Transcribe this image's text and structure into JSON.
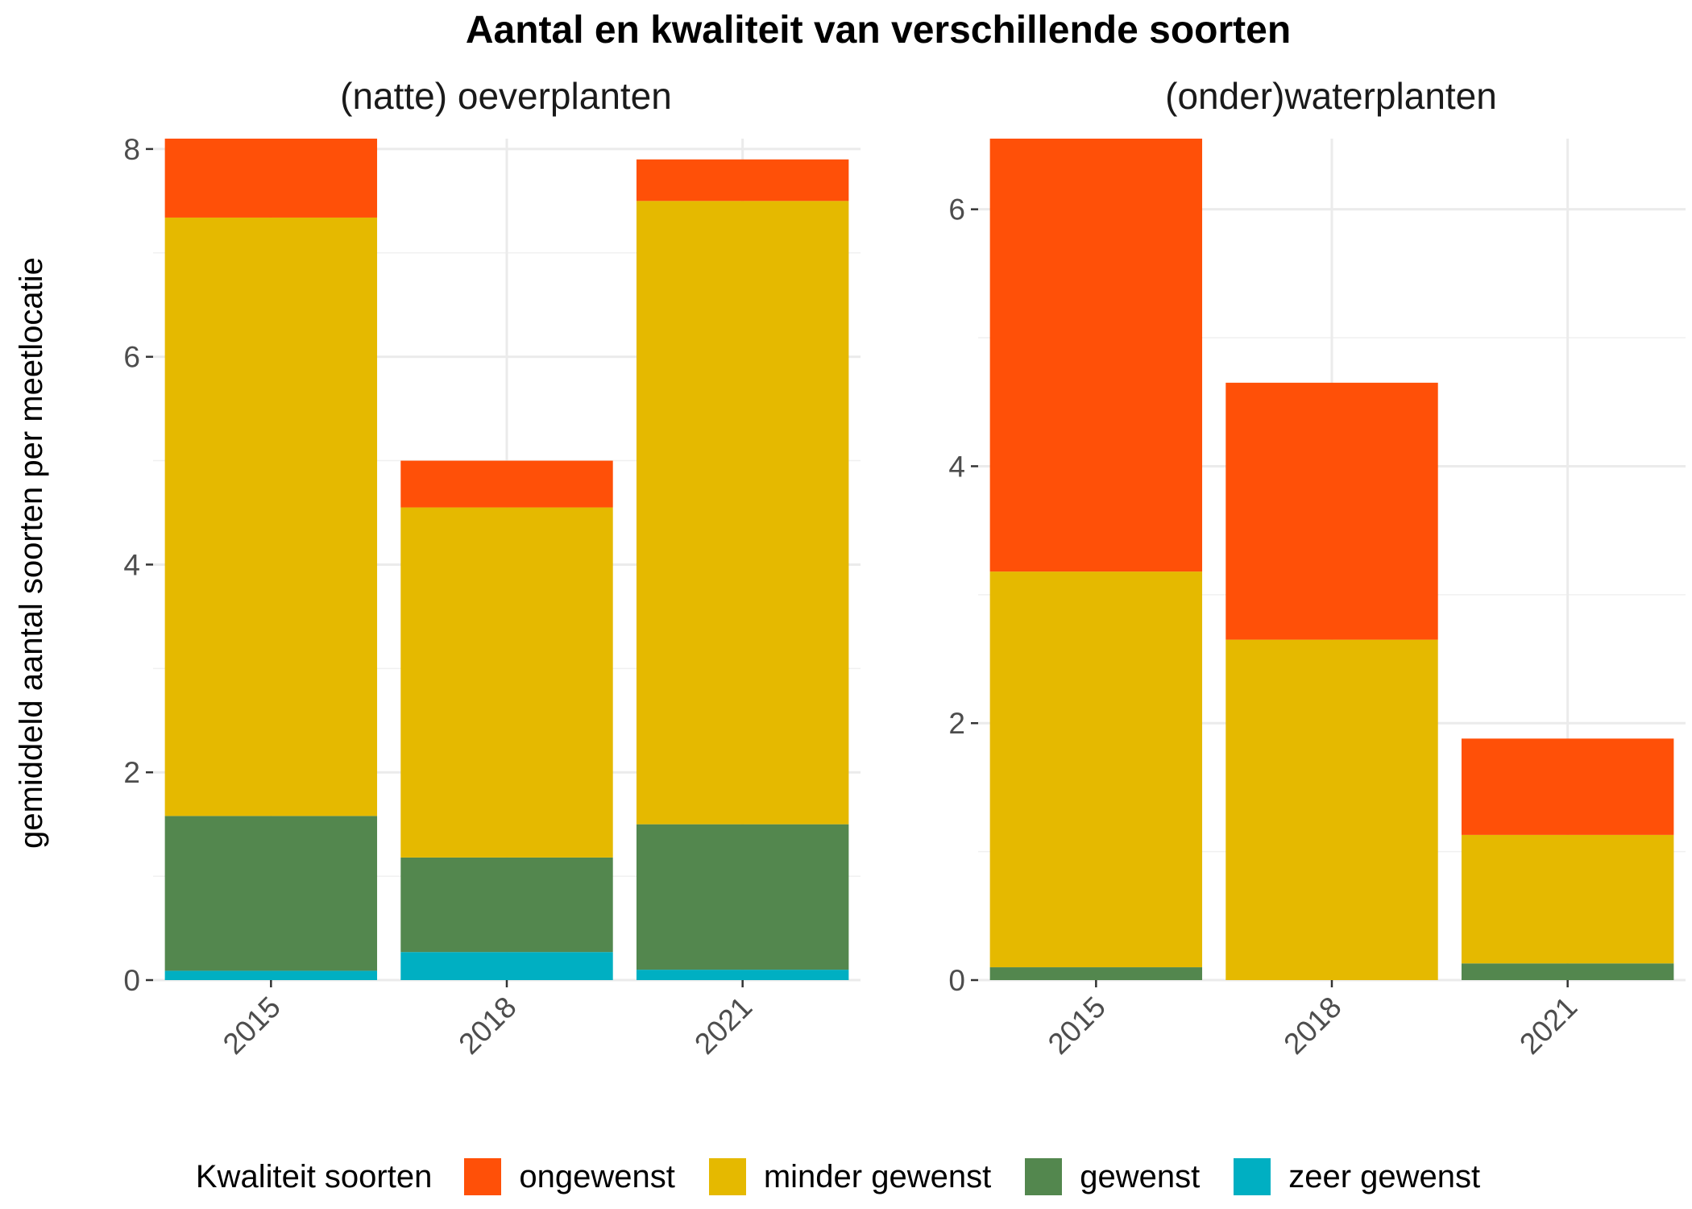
{
  "chart_data": {
    "type": "bar",
    "stacked": true,
    "title": "Aantal en kwaliteit van verschillende soorten",
    "ylabel": "gemiddeld aantal soorten per meetlocatie",
    "legend": {
      "title": "Kwaliteit soorten",
      "position": "bottom",
      "items": [
        {
          "name": "ongewenst",
          "color": "#FF5008"
        },
        {
          "name": "minder gewenst",
          "color": "#E5B900"
        },
        {
          "name": "gewenst",
          "color": "#53874E"
        },
        {
          "name": "zeer gewenst",
          "color": "#00AFC2"
        }
      ]
    },
    "panels": [
      {
        "title": "(natte) oeverplanten",
        "categories": [
          "2015",
          "2018",
          "2021"
        ],
        "ylim": [
          0,
          8.1
        ],
        "yticks": [
          0,
          2,
          4,
          6,
          8
        ],
        "series": [
          {
            "name": "zeer gewenst",
            "values": [
              0.09,
              0.27,
              0.1
            ]
          },
          {
            "name": "gewenst",
            "values": [
              1.49,
              0.91,
              1.4
            ]
          },
          {
            "name": "minder gewenst",
            "values": [
              5.76,
              3.37,
              6.0
            ]
          },
          {
            "name": "ongewenst",
            "values": [
              0.76,
              0.45,
              0.4
            ]
          }
        ]
      },
      {
        "title": "(onder)waterplanten",
        "categories": [
          "2015",
          "2018",
          "2021"
        ],
        "ylim": [
          0,
          6.55
        ],
        "yticks": [
          0,
          2,
          4,
          6
        ],
        "series": [
          {
            "name": "zeer gewenst",
            "values": [
              0,
              0,
              0
            ]
          },
          {
            "name": "gewenst",
            "values": [
              0.1,
              0,
              0.13
            ]
          },
          {
            "name": "minder gewenst",
            "values": [
              3.08,
              2.65,
              1.0
            ]
          },
          {
            "name": "ongewenst",
            "values": [
              3.37,
              2.0,
              0.75
            ]
          }
        ]
      }
    ]
  }
}
